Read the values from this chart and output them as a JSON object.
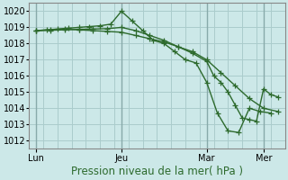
{
  "background_color": "#cce8e8",
  "grid_color": "#aacccc",
  "line_color": "#2d6a2d",
  "ylabel_text": "Pression niveau de la mer( hPa )",
  "ylim": [
    1011.5,
    1020.5
  ],
  "yticks": [
    1012,
    1013,
    1014,
    1015,
    1016,
    1017,
    1018,
    1019,
    1020
  ],
  "xtick_labels": [
    "Lun",
    "Jeu",
    "Mar",
    "Mer"
  ],
  "xtick_positions": [
    0,
    24,
    48,
    64
  ],
  "xlim": [
    -2,
    70
  ],
  "vline_positions": [
    0,
    24,
    48,
    64
  ],
  "vline_color": "#99bbbb",
  "marker_style": "+",
  "marker_size": 4,
  "linewidth": 1.0,
  "fontsize_ticks": 7,
  "fontsize_xlabel": 8.5,
  "series1_x": [
    0,
    3,
    6,
    9,
    12,
    15,
    18,
    21,
    24,
    27,
    30,
    33,
    36,
    39,
    42,
    45,
    48,
    51,
    54,
    57,
    60,
    63,
    66
  ],
  "series1_y": [
    1018.8,
    1018.85,
    1018.9,
    1018.95,
    1019.0,
    1019.05,
    1019.1,
    1019.2,
    1020.0,
    1019.4,
    1018.8,
    1018.2,
    1018.0,
    1017.5,
    1017.0,
    1016.8,
    1015.6,
    1013.7,
    1012.6,
    1012.5,
    1014.0,
    1013.8,
    1013.7
  ],
  "series2_x": [
    0,
    4,
    8,
    12,
    16,
    20,
    24,
    28,
    32,
    36,
    40,
    44,
    48,
    52,
    56,
    60,
    64,
    68
  ],
  "series2_y": [
    1018.8,
    1018.85,
    1018.9,
    1018.85,
    1018.8,
    1018.75,
    1018.7,
    1018.5,
    1018.3,
    1018.1,
    1017.8,
    1017.5,
    1017.0,
    1016.2,
    1015.4,
    1014.6,
    1014.0,
    1013.8
  ],
  "series3_x": [
    0,
    4,
    8,
    12,
    16,
    20,
    24,
    28,
    32,
    36,
    40,
    44,
    48,
    50,
    52,
    54,
    56,
    58,
    60,
    62,
    64,
    66,
    68
  ],
  "series3_y": [
    1018.8,
    1018.82,
    1018.85,
    1018.88,
    1018.9,
    1018.92,
    1019.0,
    1018.8,
    1018.5,
    1018.2,
    1017.8,
    1017.4,
    1016.9,
    1016.0,
    1015.6,
    1015.0,
    1014.2,
    1013.4,
    1013.3,
    1013.2,
    1015.2,
    1014.85,
    1014.7
  ]
}
